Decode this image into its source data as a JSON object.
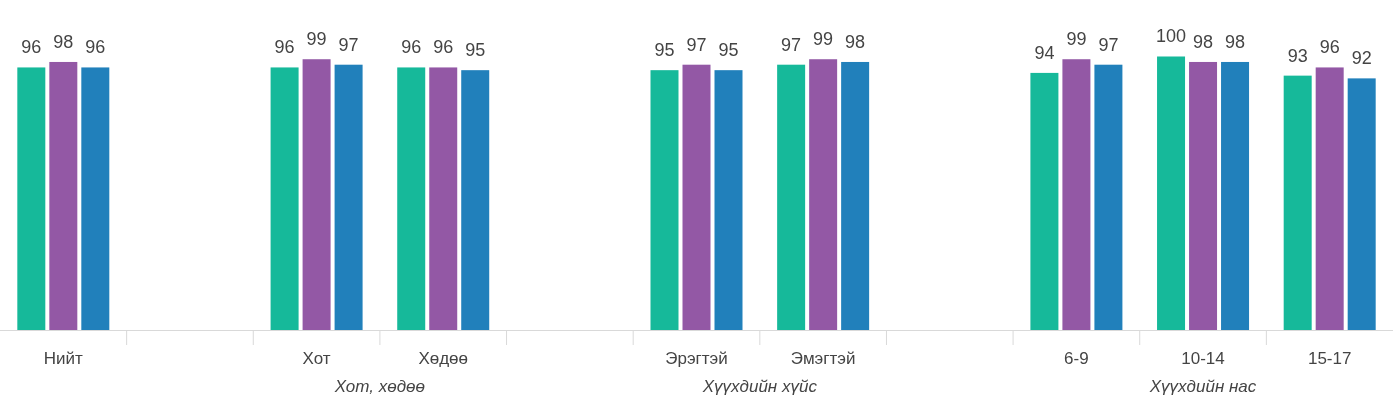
{
  "chart_data": {
    "type": "bar",
    "categories": [
      "Нийт",
      null,
      "Хот",
      "Хөдөө",
      null,
      "Эрэгтэй",
      "Эмэгтэй",
      null,
      "6-9",
      "10-14",
      "15-17"
    ],
    "series": [
      {
        "color": "#16b99a",
        "values": [
          96,
          null,
          96,
          96,
          null,
          95,
          97,
          null,
          94,
          100,
          93
        ]
      },
      {
        "color": "#9358a5",
        "values": [
          98,
          null,
          99,
          96,
          null,
          97,
          99,
          null,
          99,
          98,
          96
        ]
      },
      {
        "color": "#2180bb",
        "values": [
          96,
          null,
          97,
          95,
          null,
          95,
          98,
          null,
          97,
          98,
          92
        ]
      }
    ],
    "data_labels": true,
    "annotations": [
      "Хот, хөдөө",
      "Хүүхдийн хүйс",
      "Хүүхдийн нас"
    ]
  }
}
